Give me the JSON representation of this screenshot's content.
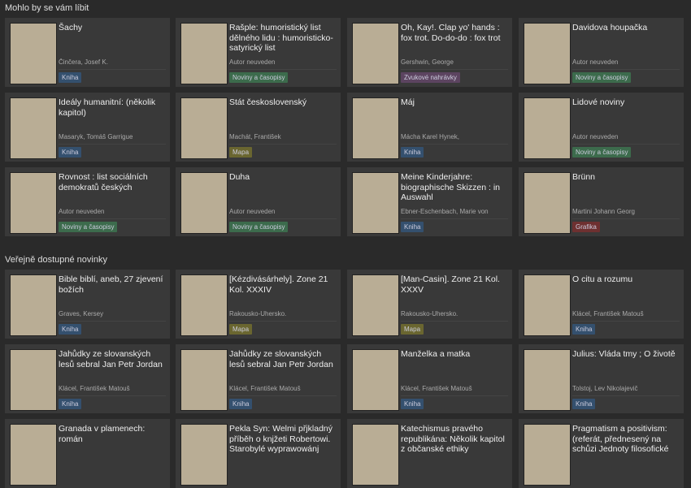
{
  "sections": [
    {
      "title": "Mohlo by se vám líbit",
      "items": [
        {
          "title": "Šachy",
          "author": "Činčera, Josef K.",
          "type": "Kniha",
          "badge_color": "#34506e"
        },
        {
          "title": "Rašple: humoristický list dělného lidu : humoristicko-satyrický list",
          "author": "Autor neuveden",
          "type": "Noviny a časopisy",
          "badge_color": "#3c6b4c"
        },
        {
          "title": "Oh, Kay!. Clap yo' hands : fox trot. Do-do-do : fox trot",
          "author": "Gershwin, George",
          "type": "Zvukové nahrávky",
          "badge_color": "#5c4460"
        },
        {
          "title": "Davidova houpačka",
          "author": "Autor neuveden",
          "type": "Noviny a časopisy",
          "badge_color": "#3c6b4c"
        },
        {
          "title": "Ideály humanitní: (několik kapitol)",
          "author": "Masaryk, Tomáš Garrigue",
          "type": "Kniha",
          "badge_color": "#34506e"
        },
        {
          "title": "Stát československý",
          "author": "Machát, František",
          "type": "Mapa",
          "badge_color": "#6a6630"
        },
        {
          "title": "Máj",
          "author": "Mácha Karel Hynek,",
          "type": "Kniha",
          "badge_color": "#34506e"
        },
        {
          "title": "Lidové noviny",
          "author": "Autor neuveden",
          "type": "Noviny a časopisy",
          "badge_color": "#3c6b4c"
        },
        {
          "title": "Rovnost : list sociálních demokratů českých",
          "author": "Autor neuveden",
          "type": "Noviny a časopisy",
          "badge_color": "#3c6b4c"
        },
        {
          "title": "Duha",
          "author": "Autor neuveden",
          "type": "Noviny a časopisy",
          "badge_color": "#3c6b4c"
        },
        {
          "title": "Meine Kinderjahre: biographische Skizzen : in Auswahl",
          "author": "Ebner-Eschenbach, Marie von",
          "type": "Kniha",
          "badge_color": "#34506e"
        },
        {
          "title": "Brünn",
          "author": "Martini Johann Georg",
          "type": "Grafika",
          "badge_color": "#6e3030"
        }
      ]
    },
    {
      "title": "Veřejně dostupné novinky",
      "items": [
        {
          "title": "Bible biblí, aneb, 27 zjevení božích",
          "author": "Graves, Kersey",
          "type": "Kniha",
          "badge_color": "#34506e"
        },
        {
          "title": "[Kézdivásárhely]. Zone 21 Kol. XXXIV",
          "author": "Rakousko-Uhersko.",
          "type": "Mapa",
          "badge_color": "#6a6630"
        },
        {
          "title": "[Man-Casin]. Zone 21 Kol. XXXV",
          "author": "Rakousko-Uhersko.",
          "type": "Mapa",
          "badge_color": "#6a6630"
        },
        {
          "title": "O citu a rozumu",
          "author": "Klácel, František Matouš",
          "type": "Kniha",
          "badge_color": "#34506e"
        },
        {
          "title": "Jahůdky ze slovanských lesů sebral Jan Petr Jordan",
          "author": "Klácel, František Matouš",
          "type": "Kniha",
          "badge_color": "#34506e"
        },
        {
          "title": "Jahůdky ze slovanských lesů sebral Jan Petr Jordan",
          "author": "Klácel, František Matouš",
          "type": "Kniha",
          "badge_color": "#34506e"
        },
        {
          "title": "Manželka a matka",
          "author": "Klácel, František Matouš",
          "type": "Kniha",
          "badge_color": "#34506e"
        },
        {
          "title": "Julius: Vláda tmy ; O životě",
          "author": "Tolstoj, Lev Nikolajevič",
          "type": "Kniha",
          "badge_color": "#34506e"
        },
        {
          "title": "Granada v plamenech: román"
        },
        {
          "title": "Pekla Syn: Welmi přjkladný příběh o knjžeti Robertowi. Starobylé wyprawowánj"
        },
        {
          "title": "Katechismus pravého republikána: Několik kapitol z občanské ethiky"
        },
        {
          "title": "Pragmatism a positivism: (referát, přednesený na schůzi Jednoty filosofické"
        }
      ]
    }
  ]
}
